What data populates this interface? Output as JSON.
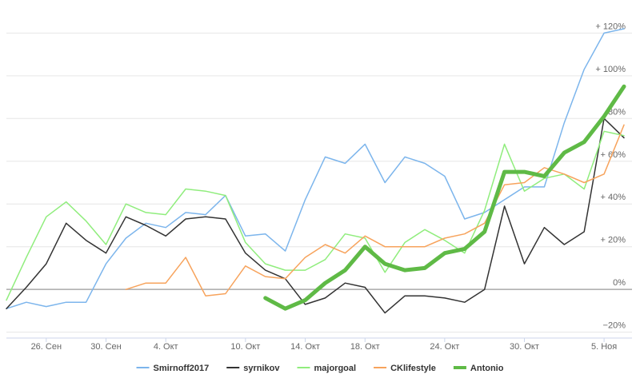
{
  "chart_data": {
    "type": "line",
    "categories": [
      null,
      null,
      "26. Сен",
      null,
      null,
      "30. Сен",
      null,
      null,
      "4. Окт",
      null,
      null,
      null,
      "10. Окт",
      null,
      null,
      "14. Окт",
      null,
      null,
      "18. Окт",
      null,
      null,
      null,
      "24. Окт",
      null,
      null,
      null,
      "30. Окт",
      null,
      null,
      null,
      "5. Ноя",
      null
    ],
    "series": [
      {
        "name": "Smirnoff2017",
        "color": "#7cb5ec",
        "width": 1.5,
        "values": [
          -9,
          -6,
          -8,
          -6,
          -6,
          12,
          24,
          31,
          29,
          36,
          35,
          44,
          25,
          26,
          18,
          42,
          62,
          59,
          68,
          50,
          62,
          59,
          53,
          33,
          36,
          42,
          48,
          48,
          78,
          103,
          120,
          122
        ]
      },
      {
        "name": "syrnikov",
        "color": "#333333",
        "width": 1.5,
        "values": [
          -9,
          1,
          12,
          31,
          23,
          17,
          34,
          30,
          25,
          33,
          34,
          33,
          17,
          9,
          5,
          -7,
          -4,
          3,
          1,
          -11,
          -3,
          -3,
          -4,
          -6,
          0,
          39,
          12,
          29,
          21,
          27,
          80,
          71
        ]
      },
      {
        "name": "majorgoal",
        "color": "#90ed7d",
        "width": 1.5,
        "values": [
          -5,
          15,
          34,
          41,
          32,
          21,
          40,
          36,
          35,
          47,
          46,
          44,
          22,
          12,
          9,
          9,
          14,
          26,
          24,
          8,
          22,
          28,
          23,
          17,
          37,
          68,
          46,
          52,
          54,
          47,
          74,
          72
        ]
      },
      {
        "name": "CKlifestyle",
        "color": "#f7a35c",
        "width": 1.5,
        "values": [
          null,
          null,
          null,
          null,
          null,
          null,
          0,
          3,
          3,
          15,
          -3,
          -2,
          11,
          6,
          5,
          15,
          21,
          17,
          25,
          20,
          20,
          20,
          24,
          26,
          31,
          49,
          50,
          57,
          54,
          50,
          54,
          77
        ]
      },
      {
        "name": "Antonio",
        "color": "#5fba46",
        "width": 5,
        "values": [
          null,
          null,
          null,
          null,
          null,
          null,
          null,
          null,
          null,
          null,
          null,
          null,
          null,
          -4,
          -9,
          -5,
          3,
          9,
          20,
          12,
          9,
          10,
          17,
          19,
          27,
          55,
          55,
          53,
          64,
          69,
          81,
          95
        ]
      }
    ],
    "ylim": [
      -22,
      125
    ],
    "yticks": [
      {
        "value": -20,
        "label": "−20%"
      },
      {
        "value": 0,
        "label": "0%"
      },
      {
        "value": 20,
        "label": "+ 20%"
      },
      {
        "value": 40,
        "label": "+ 40%"
      },
      {
        "value": 60,
        "label": "+ 60%"
      },
      {
        "value": 80,
        "label": "80%"
      },
      {
        "value": 100,
        "label": "+ 100%"
      },
      {
        "value": 120,
        "label": "+ 120%"
      }
    ],
    "grid": true,
    "legend": "bottom"
  }
}
